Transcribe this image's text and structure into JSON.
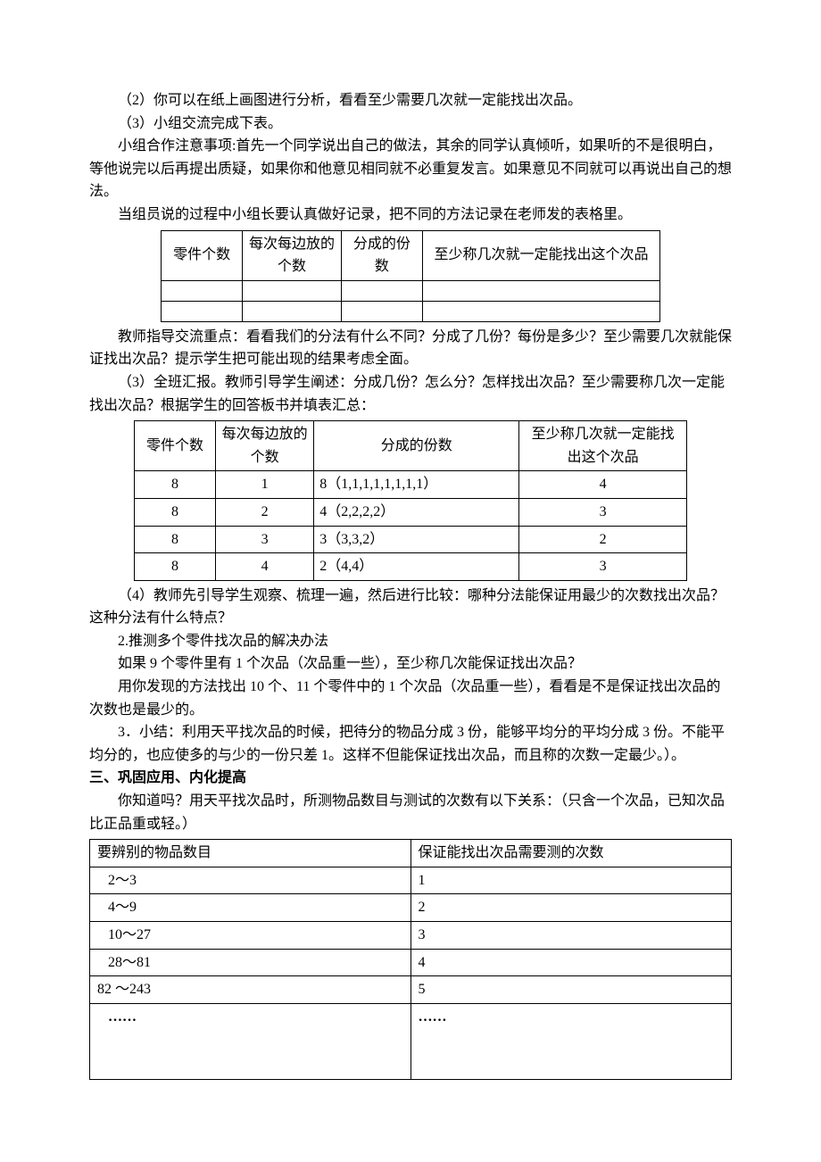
{
  "paragraphs": {
    "p1": "（2）你可以在纸上画图进行分析，看看至少需要几次就一定能找出次品。",
    "p2": "（3）小组交流完成下表。",
    "p3": "小组合作注意事项:首先一个同学说出自己的做法，其余的同学认真倾听，如果听的不是很明白，等他说完以后再提出质疑，如果你和他意见相同就不必重复发言。如果意见不同就可以再说出自己的想法。",
    "p4": "当组员说的过程中小组长要认真做好记录，把不同的方法记录在老师发的表格里。",
    "p5": "教师指导交流重点：看看我们的分法有什么不同？分成了几份？每份是多少？至少需要几次就能保证找出次品？提示学生把可能出现的结果考虑全面。",
    "p6": "（3）全班汇报。教师引导学生阐述：分成几份？怎么分？怎样找出次品？至少需要称几次一定能找出次品？根据学生的回答板书并填表汇总：",
    "p7": "（4）教师先引导学生观察、梳理一遍，然后进行比较：哪种分法能保证用最少的次数找出次品？这种分法有什么特点？",
    "p8": "2.推测多个零件找次品的解决办法",
    "p9": "如果 9 个零件里有 1 个次品（次品重一些），至少称几次能保证找出次品？",
    "p10": "用你发现的方法找出 10 个、11 个零件中的 1 个次品（次品重一些），看看是不是保证找出次品的次数也是最少的。",
    "p11": "3．小结：利用天平找次品的时候，把待分的物品分成 3 份，能够平均分的平均分成 3 份。不能平均分的，也应使多的与少的一份只差 1。这样不但能保证找出次品，而且称的次数一定最少。）。",
    "h3": "三、巩固应用、内化提高",
    "p12": "你知道吗？用天平找次品时，所测物品数目与测试的次数有以下关系：（只含一个次品，已知次品比正品重或轻。）"
  },
  "table1": {
    "headers": [
      "零件个数",
      "每次每边放的个数",
      "分成的份数",
      "至少称几次就一定能找出这个次品"
    ]
  },
  "table2": {
    "headers": [
      "零件个数",
      "每次每边放的个数",
      "分成的份数",
      "至少称几次就一定能找出这个次品"
    ],
    "rows": [
      {
        "c1": "8",
        "c2": "1",
        "c3": "8（1,1,1,1,1,1,1,1）",
        "c4": "4"
      },
      {
        "c1": "8",
        "c2": "2",
        "c3": "4（2,2,2,2）",
        "c4": "3"
      },
      {
        "c1": "8",
        "c2": "3",
        "c3": "3（3,3,2）",
        "c4": "2"
      },
      {
        "c1": "8",
        "c2": "4",
        "c3": "2（4,4）",
        "c4": "3"
      }
    ]
  },
  "table3": {
    "headers": [
      "要辨别的物品数目",
      "保证能找出次品需要测的次数"
    ],
    "rows": [
      {
        "c1": "2～3",
        "c2": "1"
      },
      {
        "c1": "4～9",
        "c2": "2"
      },
      {
        "c1": "10～27",
        "c2": "3"
      },
      {
        "c1": "28～81",
        "c2": "4"
      },
      {
        "c1": "82 ～243",
        "c2": "5"
      },
      {
        "c1": "……",
        "c2": "……"
      }
    ]
  }
}
